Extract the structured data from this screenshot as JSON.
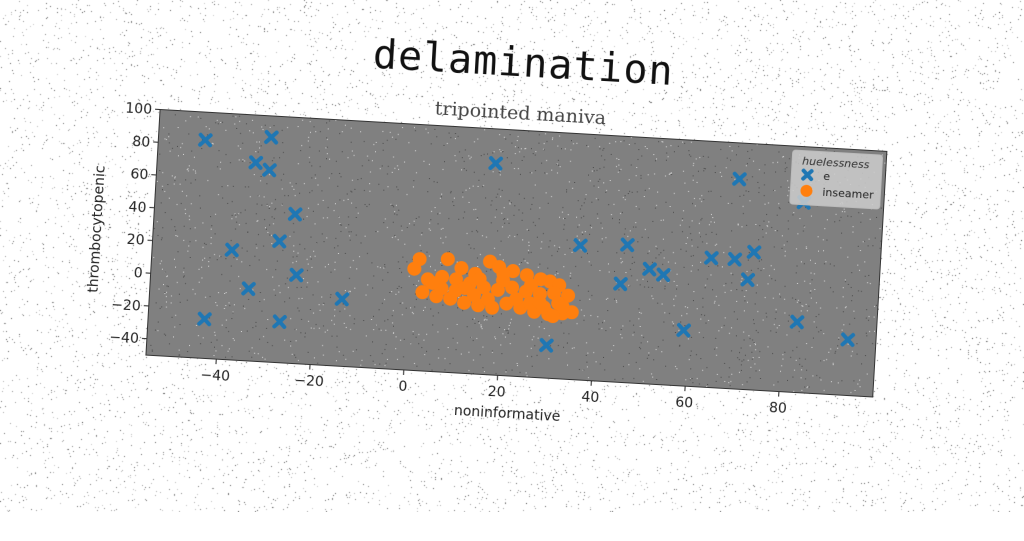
{
  "chart_data": {
    "type": "scatter",
    "title": "delamination",
    "subtitle": "tripointed maniva",
    "xlabel": "noninformative",
    "ylabel": "thrombocytopenic",
    "xlim": [
      -55,
      100
    ],
    "ylim": [
      -50,
      100
    ],
    "xticks": [
      -40,
      -20,
      0,
      20,
      40,
      60,
      80
    ],
    "yticks": [
      -40,
      -20,
      0,
      20,
      40,
      60,
      80,
      100
    ],
    "grid": false,
    "background": "#808080",
    "legend": {
      "title": "hueIessness",
      "placement": "top-right"
    },
    "series": [
      {
        "name": "e",
        "marker": "x",
        "color": "#1f77b4",
        "points": [
          [
            -45,
            83
          ],
          [
            -31,
            87
          ],
          [
            -34,
            71
          ],
          [
            -31,
            67
          ],
          [
            -25,
            41
          ],
          [
            -28,
            24
          ],
          [
            -38,
            17
          ],
          [
            -24,
            4
          ],
          [
            -34,
            -6
          ],
          [
            -43,
            -26
          ],
          [
            -27,
            -25
          ],
          [
            -14,
            -9
          ],
          [
            17,
            79
          ],
          [
            36,
            32
          ],
          [
            46,
            34
          ],
          [
            51,
            20
          ],
          [
            54,
            17
          ],
          [
            45,
            10
          ],
          [
            30,
            -30
          ],
          [
            36,
            -55
          ],
          [
            57,
            -51
          ],
          [
            59,
            -16
          ],
          [
            64,
            29
          ],
          [
            69,
            78
          ],
          [
            69,
            29
          ],
          [
            73,
            34
          ],
          [
            72,
            17
          ],
          [
            83,
            66
          ],
          [
            83,
            -7
          ],
          [
            94,
            -16
          ]
        ]
      },
      {
        "name": "inseamer",
        "marker": "o",
        "color": "#ff7f0e",
        "points": [
          [
            2,
            18
          ],
          [
            1,
            12
          ],
          [
            8,
            19
          ],
          [
            11,
            14
          ],
          [
            14,
            11
          ],
          [
            17,
            19
          ],
          [
            19,
            16
          ],
          [
            22,
            14
          ],
          [
            25,
            12
          ],
          [
            28,
            10
          ],
          [
            30,
            9
          ],
          [
            32,
            7
          ],
          [
            4,
            6
          ],
          [
            7,
            8
          ],
          [
            10,
            7
          ],
          [
            13,
            5
          ],
          [
            16,
            3
          ],
          [
            19,
            2
          ],
          [
            22,
            4
          ],
          [
            25,
            2
          ],
          [
            28,
            1
          ],
          [
            31,
            2
          ],
          [
            34,
            1
          ],
          [
            3,
            -2
          ],
          [
            6,
            -4
          ],
          [
            9,
            -5
          ],
          [
            12,
            -7
          ],
          [
            15,
            -8
          ],
          [
            18,
            -9
          ],
          [
            21,
            -6
          ],
          [
            24,
            -8
          ],
          [
            27,
            -10
          ],
          [
            30,
            -11
          ],
          [
            33,
            -10
          ],
          [
            35,
            -9
          ],
          [
            26,
            -5
          ],
          [
            29,
            -7
          ],
          [
            32,
            -4
          ],
          [
            14,
            -2
          ],
          [
            17,
            -4
          ],
          [
            10,
            0
          ],
          [
            20,
            8
          ],
          [
            26,
            6
          ],
          [
            12,
            2
          ],
          [
            15,
            8
          ],
          [
            23,
            -3
          ],
          [
            28,
            -4
          ],
          [
            33,
            -6
          ],
          [
            7,
            1
          ],
          [
            20,
            12
          ],
          [
            5,
            4
          ],
          [
            31,
            -12
          ]
        ]
      }
    ]
  }
}
